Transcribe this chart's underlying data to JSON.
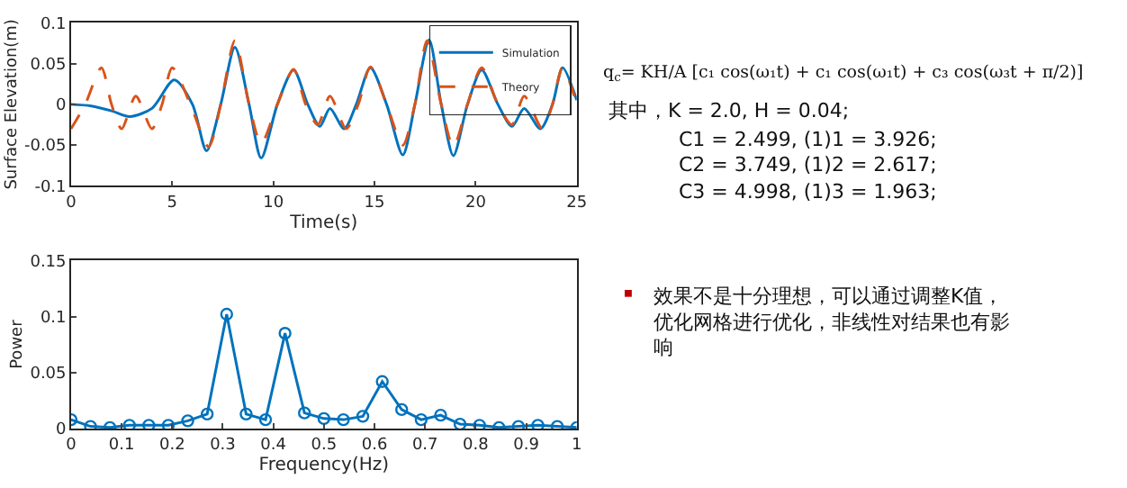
{
  "chart_data": [
    {
      "type": "line",
      "xlabel": "Time(s)",
      "ylabel": "Surface Elevation(m)",
      "xlim": [
        0,
        25
      ],
      "ylim": [
        -0.1,
        0.1
      ],
      "xticks": [
        0,
        5,
        10,
        15,
        20,
        25
      ],
      "yticks": [
        -0.1,
        -0.05,
        0,
        0.05,
        0.1
      ],
      "legend": "top right",
      "marker": "none",
      "series": [
        {
          "name": "Simulation",
          "color": "#0072bd",
          "line_style": "solid",
          "x": [
            0,
            1,
            2,
            2.9,
            4,
            5.1,
            6,
            6.7,
            7.4,
            8.1,
            8.8,
            9.4,
            10.2,
            11,
            11.7,
            12.3,
            12.8,
            13.5,
            14.1,
            14.8,
            15.6,
            16.4,
            17,
            17.7,
            18.3,
            18.9,
            19.6,
            20.3,
            21.1,
            21.8,
            22.4,
            23.2,
            23.8,
            24.3,
            25
          ],
          "values": [
            0,
            -0.002,
            -0.008,
            -0.015,
            -0.005,
            0.03,
            0,
            -0.057,
            0,
            0.07,
            0,
            -0.066,
            0,
            0.042,
            0,
            -0.027,
            -0.005,
            -0.03,
            0,
            0.045,
            0,
            -0.062,
            0,
            0.079,
            0,
            -0.063,
            0,
            0.042,
            0,
            -0.027,
            -0.005,
            -0.03,
            0,
            0.045,
            0.005
          ]
        },
        {
          "name": "Theory",
          "color": "#d95319",
          "line_style": "dashed",
          "x": [
            0,
            0.7,
            1.5,
            2,
            2.5,
            3.2,
            4,
            4.5,
            5,
            5.9,
            6.8,
            7.4,
            8.1,
            8.8,
            9.4,
            10.2,
            11,
            11.6,
            12.2,
            12.8,
            13.6,
            14.2,
            14.8,
            15.6,
            16.4,
            17,
            17.6,
            18.3,
            18.9,
            19.6,
            20.3,
            21.1,
            21.8,
            22.4,
            23.3,
            23.8,
            24.3,
            25
          ],
          "values": [
            -0.03,
            0,
            0.045,
            0,
            -0.03,
            0.01,
            -0.03,
            0,
            0.045,
            0,
            -0.052,
            0,
            0.078,
            0,
            -0.048,
            0,
            0.043,
            0,
            -0.025,
            0.01,
            -0.03,
            0,
            0.046,
            0,
            -0.05,
            0,
            0.078,
            0,
            -0.052,
            0,
            0.045,
            0,
            -0.025,
            0.01,
            -0.03,
            0,
            0.045,
            0
          ]
        }
      ]
    },
    {
      "type": "line",
      "xlabel": "Frequency(Hz)",
      "ylabel": "Power",
      "xlim": [
        0,
        1
      ],
      "ylim": [
        0,
        0.15
      ],
      "xticks": [
        0,
        0.1,
        0.2,
        0.3,
        0.4,
        0.5,
        0.6,
        0.7,
        0.8,
        0.9,
        1
      ],
      "yticks": [
        0,
        0.05,
        0.1,
        0.15
      ],
      "legend": false,
      "marker": "circle",
      "series": [
        {
          "color": "#0072bd",
          "x": [
            0,
            0.0385,
            0.0769,
            0.1154,
            0.1538,
            0.1923,
            0.2308,
            0.2692,
            0.3077,
            0.3462,
            0.3846,
            0.4231,
            0.4615,
            0.5,
            0.5385,
            0.5769,
            0.6154,
            0.6538,
            0.6923,
            0.7308,
            0.7692,
            0.8077,
            0.8462,
            0.8846,
            0.9231,
            0.9615,
            1
          ],
          "values": [
            0.008,
            0.002,
            0.001,
            0.003,
            0.003,
            0.003,
            0.007,
            0.013,
            0.102,
            0.013,
            0.008,
            0.085,
            0.014,
            0.009,
            0.008,
            0.011,
            0.042,
            0.017,
            0.008,
            0.012,
            0.004,
            0.003,
            0.001,
            0.002,
            0.003,
            0.002,
            0.001
          ]
        }
      ]
    },
    {
      "type": "other",
      "annotations": [
        "q$_{c}$= KH/A [c₁ cos(ω₁t) + c₁ cos(ω₁t) + c₃ cos(ω₃t + π/2)]",
        "其中，K = 2.0, H = 0.04;",
        "C1 = 2.499, (1)1 = 3.926;",
        "C2 = 3.749, (1)2 = 2.617;",
        "C3 = 4.998, (1)3 = 1.963;",
        "效果不是十分理想，可以通过调整K值，优化网格进行优化，非线性对结果也有影响"
      ]
    }
  ]
}
